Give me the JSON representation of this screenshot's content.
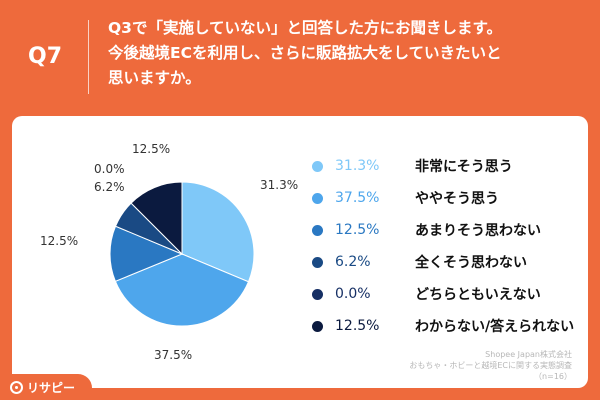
{
  "header": {
    "q_number": "Q7",
    "question_line1": "Q3で「実施していない」と回答した方にお聞きします。",
    "question_line2": "今後越境ECを利用し、さらに販路拡大をしていきたいと",
    "question_line3": "思いますか。"
  },
  "chart_data": {
    "type": "pie",
    "title": "",
    "start_angle": "12 o'clock, clockwise",
    "slices": [
      {
        "label": "非常にそう思う",
        "value": 31.3,
        "display": "31.3%",
        "color": "#7fc8f8"
      },
      {
        "label": "ややそう思う",
        "value": 37.5,
        "display": "37.5%",
        "color": "#4ea6ec"
      },
      {
        "label": "あまりそう思わない",
        "value": 12.5,
        "display": "12.5%",
        "color": "#2a78c2"
      },
      {
        "label": "全くそう思わない",
        "value": 6.2,
        "display": "6.2%",
        "color": "#1a4a84"
      },
      {
        "label": "どちらともいえない",
        "value": 0.0,
        "display": "0.0%",
        "color": "#162f64"
      },
      {
        "label": "わからない/答えられない",
        "value": 12.5,
        "display": "12.5%",
        "color": "#0b1a3f"
      }
    ]
  },
  "source": {
    "line1": "Shopee Japan株式会社",
    "line2": "おもちゃ・ホビーと越境ECに関する実態調査",
    "line3": "（n=16）"
  },
  "brand": {
    "name": "リサピー"
  }
}
